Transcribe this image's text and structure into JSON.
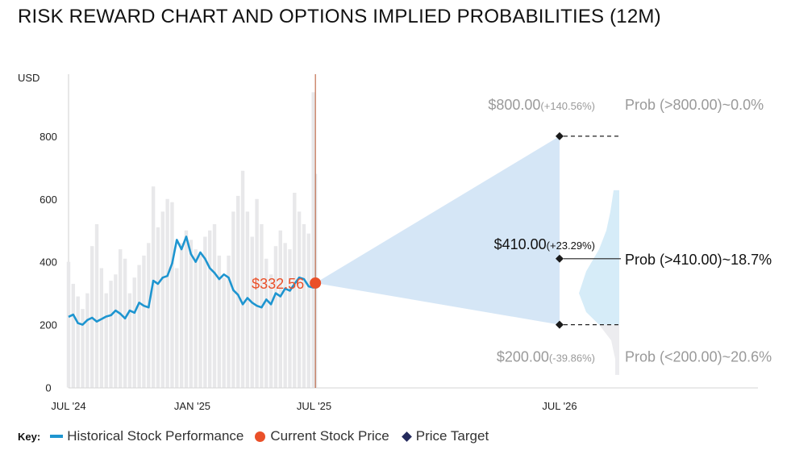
{
  "title": "RISK REWARD CHART AND OPTIONS IMPLIED PROBABILITIES (12M)",
  "chart_data": {
    "type": "line",
    "ylabel": "USD",
    "ylim": [
      0,
      960
    ],
    "yticks": [
      0,
      200,
      400,
      600,
      800
    ],
    "x_tick_labels": [
      "JUL '24",
      "JAN '25",
      "JUL '25",
      "JUL '26"
    ],
    "x_range": [
      "2024-07",
      "2026-08"
    ],
    "series": [
      {
        "name": "Historical Stock Performance",
        "color": "#1e95d0",
        "x": [
          "2024-07-01",
          "2024-07-08",
          "2024-07-15",
          "2024-07-22",
          "2024-07-29",
          "2024-08-05",
          "2024-08-12",
          "2024-08-19",
          "2024-08-26",
          "2024-09-02",
          "2024-09-09",
          "2024-09-16",
          "2024-09-23",
          "2024-09-30",
          "2024-10-07",
          "2024-10-14",
          "2024-10-21",
          "2024-10-28",
          "2024-11-04",
          "2024-11-11",
          "2024-11-18",
          "2024-11-25",
          "2024-12-02",
          "2024-12-09",
          "2024-12-16",
          "2024-12-23",
          "2024-12-30",
          "2025-01-06",
          "2025-01-13",
          "2025-01-20",
          "2025-01-27",
          "2025-02-03",
          "2025-02-10",
          "2025-02-17",
          "2025-02-24",
          "2025-03-03",
          "2025-03-10",
          "2025-03-17",
          "2025-03-24",
          "2025-03-31",
          "2025-04-07",
          "2025-04-14",
          "2025-04-21",
          "2025-04-28",
          "2025-05-05",
          "2025-05-12",
          "2025-05-19",
          "2025-05-26",
          "2025-06-02",
          "2025-06-09",
          "2025-06-16",
          "2025-06-23",
          "2025-06-30",
          "2025-07-03"
        ],
        "values": [
          225,
          232,
          205,
          200,
          215,
          222,
          210,
          218,
          226,
          230,
          245,
          235,
          220,
          245,
          238,
          270,
          260,
          255,
          340,
          330,
          350,
          355,
          395,
          470,
          440,
          480,
          425,
          400,
          430,
          410,
          380,
          365,
          345,
          360,
          350,
          310,
          295,
          265,
          285,
          270,
          260,
          255,
          280,
          265,
          300,
          290,
          315,
          308,
          330,
          350,
          345,
          322,
          318,
          332.56
        ]
      },
      {
        "name": "Trading Volume",
        "color": "#e8e8ea",
        "x": [
          "2024-07-01",
          "2024-07-08",
          "2024-07-15",
          "2024-07-22",
          "2024-07-29",
          "2024-08-05",
          "2024-08-12",
          "2024-08-19",
          "2024-08-26",
          "2024-09-02",
          "2024-09-09",
          "2024-09-16",
          "2024-09-23",
          "2024-09-30",
          "2024-10-07",
          "2024-10-14",
          "2024-10-21",
          "2024-10-28",
          "2024-11-04",
          "2024-11-11",
          "2024-11-18",
          "2024-11-25",
          "2024-12-02",
          "2024-12-09",
          "2024-12-16",
          "2024-12-23",
          "2024-12-30",
          "2025-01-06",
          "2025-01-13",
          "2025-01-20",
          "2025-01-27",
          "2025-02-03",
          "2025-02-10",
          "2025-02-17",
          "2025-02-24",
          "2025-03-03",
          "2025-03-10",
          "2025-03-17",
          "2025-03-24",
          "2025-03-31",
          "2025-04-07",
          "2025-04-14",
          "2025-04-21",
          "2025-04-28",
          "2025-05-05",
          "2025-05-12",
          "2025-05-19",
          "2025-05-26",
          "2025-06-02",
          "2025-06-09",
          "2025-06-16",
          "2025-06-23",
          "2025-06-30",
          "2025-07-03"
        ],
        "values": [
          400,
          330,
          290,
          250,
          300,
          450,
          520,
          380,
          300,
          340,
          360,
          440,
          410,
          300,
          350,
          390,
          420,
          460,
          640,
          510,
          560,
          600,
          590,
          380,
          460,
          500,
          470,
          440,
          420,
          480,
          500,
          520,
          420,
          350,
          420,
          560,
          610,
          690,
          560,
          480,
          600,
          520,
          410,
          360,
          450,
          500,
          460,
          440,
          620,
          560,
          520,
          490,
          940,
          680
        ]
      }
    ],
    "current_price": {
      "label": "$332.56",
      "value": 332.56,
      "date": "2025-07-03",
      "color": "#ea5029"
    },
    "price_targets": [
      {
        "label": "$800.00",
        "change": "(+140.56%)",
        "value": 800,
        "probability": "Prob (>800.00)~0.0%"
      },
      {
        "label": "$410.00",
        "change": "(+23.29%)",
        "value": 410,
        "probability": "Prob (>410.00)~18.7%"
      },
      {
        "label": "$200.00",
        "change": "(-39.86%)",
        "value": 200,
        "probability": "Prob (<200.00)~20.6%"
      }
    ],
    "target_date": "2026-07",
    "projection_color": "#d5e6f6",
    "distribution": {
      "upper_color": "#d6ecf8",
      "lower_color": "#ececef",
      "points": [
        {
          "price": 628,
          "density": 0.14
        },
        {
          "price": 560,
          "density": 0.22
        },
        {
          "price": 500,
          "density": 0.32
        },
        {
          "price": 440,
          "density": 0.5
        },
        {
          "price": 370,
          "density": 0.82
        },
        {
          "price": 300,
          "density": 1.0
        },
        {
          "price": 240,
          "density": 0.82
        },
        {
          "price": 200,
          "density": 0.5
        },
        {
          "price": 150,
          "density": 0.2
        },
        {
          "price": 90,
          "density": 0.1
        },
        {
          "price": 40,
          "density": 0.1
        }
      ]
    }
  },
  "key": {
    "title": "Key:",
    "items": [
      {
        "label": "Historical Stock Performance",
        "icon": "line-swatch"
      },
      {
        "label": "Current Stock Price",
        "icon": "dot-swatch"
      },
      {
        "label": "Price Target",
        "icon": "diamond-swatch"
      }
    ]
  }
}
